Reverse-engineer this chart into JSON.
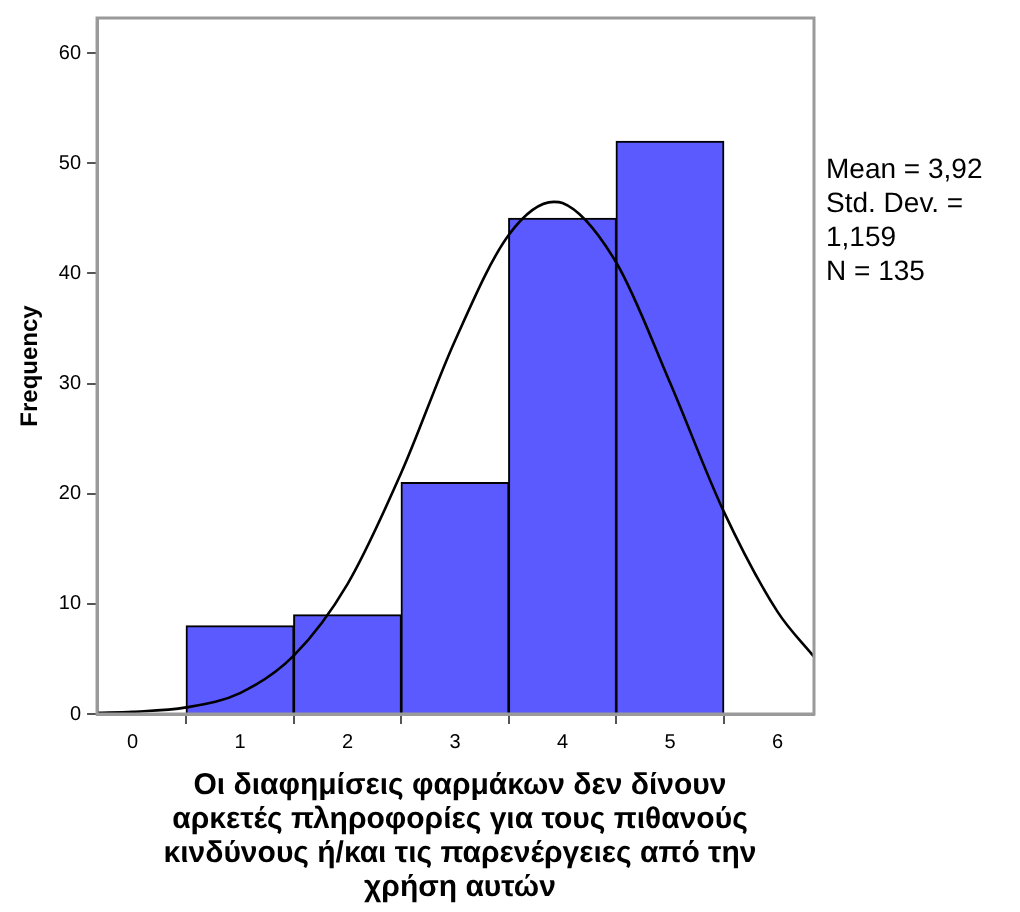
{
  "chart_data": {
    "type": "histogram",
    "xlabel": "Οι διαφημίσεις φαρμάκων δεν δίνουν αρκετές πληροφορίες για τους πιθανούς κινδύνους ή/και τις παρενέργειες από την χρήση αυτών",
    "ylabel": "Frequency",
    "annotations": [
      "Mean = 3,92",
      "Std. Dev. = 1,159",
      "N = 135"
    ],
    "bins": [
      0.5,
      1.5,
      2.5,
      3.5,
      4.5,
      5.5
    ],
    "values": [
      8,
      9,
      21,
      45,
      52
    ],
    "color": "#5a5aff",
    "series": [
      {
        "type": "line",
        "color": "#000000",
        "x": [
          -0.33,
          0,
          0.5,
          1,
          1.5,
          2,
          2.5,
          3,
          3.5,
          3.92,
          4,
          4.5,
          5,
          5.5,
          6,
          6.34
        ],
        "values": [
          0.1,
          0.2,
          0.6,
          1.9,
          5.3,
          11.8,
          21.9,
          33.9,
          43.5,
          46.5,
          46.4,
          41,
          30.1,
          18.4,
          9.3,
          5.2
        ]
      }
    ],
    "xlim": [
      -0.33,
      6.34
    ],
    "xticks": [
      0,
      1,
      2,
      3,
      4,
      5,
      6
    ],
    "ylim": [
      0,
      63.2
    ],
    "yticks": [
      0,
      10,
      20,
      30,
      40,
      50,
      60
    ],
    "grid": false,
    "legend": false,
    "marker": "none",
    "line_style": "solid"
  }
}
